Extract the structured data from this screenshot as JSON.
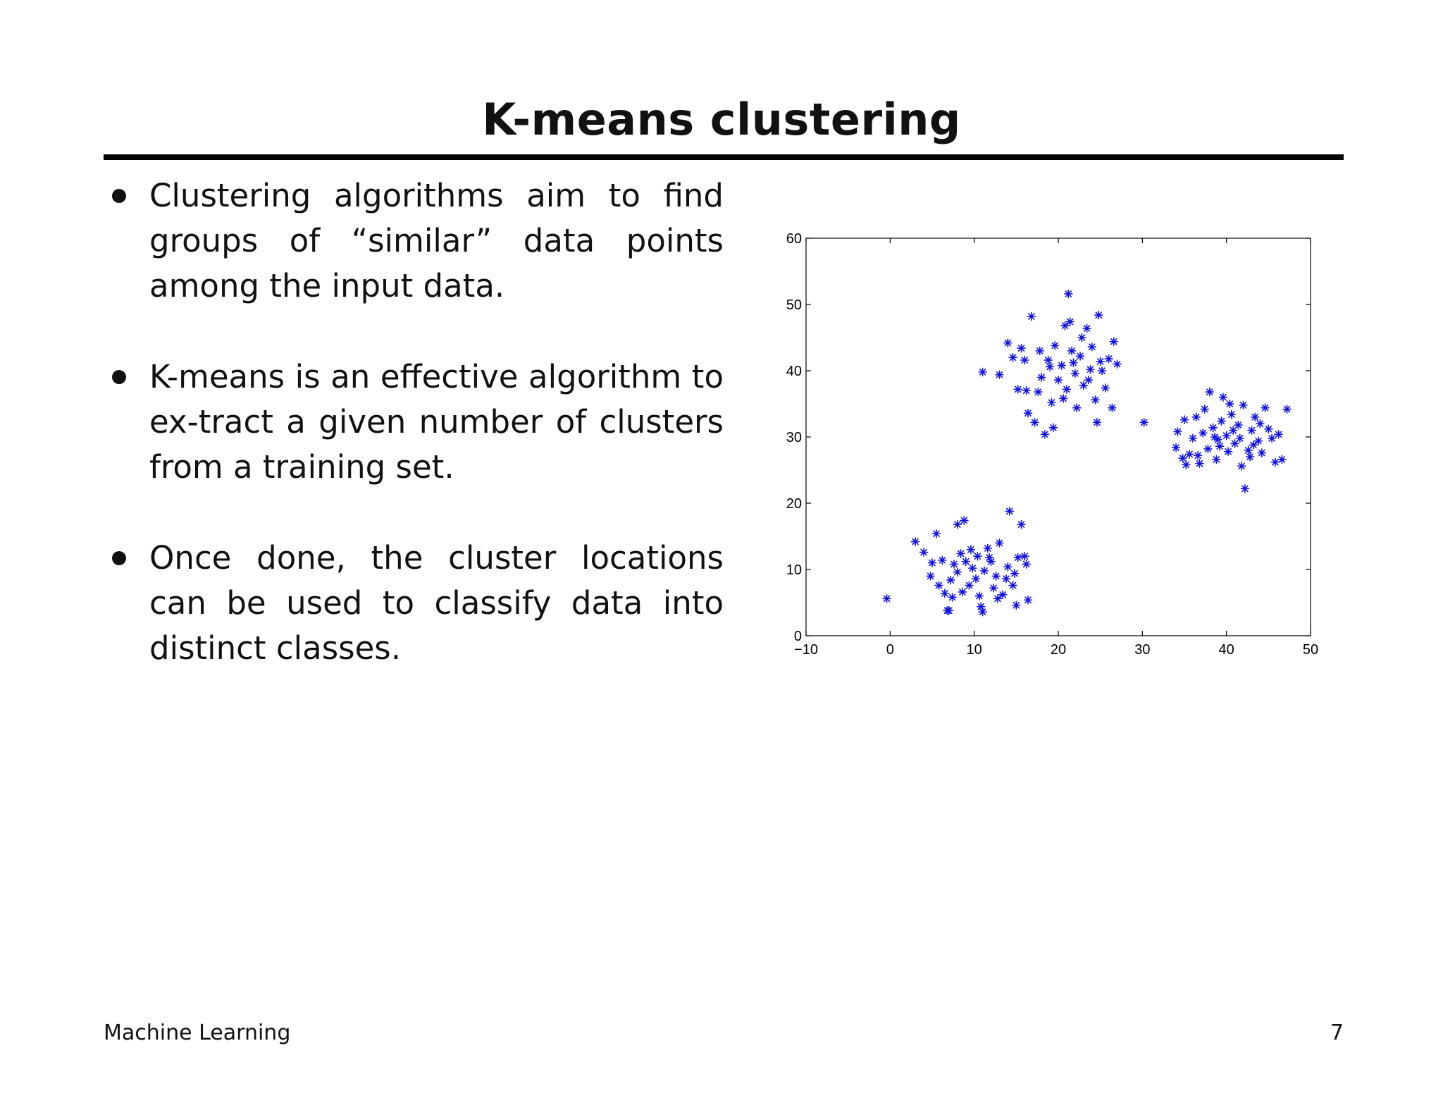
{
  "slide": {
    "title": "K-means clustering",
    "bullets": [
      "Clustering algorithms aim to find groups of “similar” data points among the input data.",
      "K-means is an effective algorithm to ex-tract a given number of clusters from a training set.",
      "Once done, the cluster locations can be used to classify data into distinct classes."
    ],
    "footer_left": "Machine Learning",
    "page_number": "7"
  },
  "chart_data": {
    "type": "scatter",
    "marker": "asterisk",
    "marker_color": "#1010e0",
    "xlim": [
      -10,
      50
    ],
    "ylim": [
      0,
      60
    ],
    "x_ticks": [
      -10,
      0,
      10,
      20,
      30,
      40,
      50
    ],
    "x_tick_labels": [
      "−10",
      "0",
      "10",
      "20",
      "30",
      "40",
      "50"
    ],
    "y_ticks": [
      0,
      10,
      20,
      30,
      40,
      50,
      60
    ],
    "y_tick_labels": [
      "0",
      "10",
      "20",
      "30",
      "40",
      "50",
      "60"
    ],
    "grid": false,
    "series": [
      {
        "points": [
          [
            -0.4,
            5.6
          ],
          [
            3.0,
            14.2
          ],
          [
            4.0,
            12.6
          ],
          [
            5.5,
            15.4
          ],
          [
            5.0,
            11.0
          ],
          [
            4.8,
            9.0
          ],
          [
            5.8,
            7.6
          ],
          [
            6.5,
            6.4
          ],
          [
            7.0,
            3.8
          ],
          [
            7.4,
            5.8
          ],
          [
            7.2,
            8.4
          ],
          [
            8.0,
            9.6
          ],
          [
            8.4,
            12.4
          ],
          [
            8.0,
            16.8
          ],
          [
            8.8,
            17.4
          ],
          [
            9.0,
            11.2
          ],
          [
            9.4,
            7.6
          ],
          [
            9.8,
            10.2
          ],
          [
            10.2,
            8.6
          ],
          [
            10.4,
            12.0
          ],
          [
            10.8,
            4.4
          ],
          [
            11.0,
            3.6
          ],
          [
            11.2,
            9.8
          ],
          [
            11.6,
            13.2
          ],
          [
            12.0,
            11.2
          ],
          [
            12.3,
            7.2
          ],
          [
            12.6,
            9.0
          ],
          [
            13.0,
            14.0
          ],
          [
            13.4,
            6.2
          ],
          [
            13.8,
            8.6
          ],
          [
            14.0,
            10.4
          ],
          [
            14.2,
            18.8
          ],
          [
            14.6,
            7.6
          ],
          [
            15.0,
            4.6
          ],
          [
            15.2,
            11.8
          ],
          [
            15.6,
            16.8
          ],
          [
            16.0,
            12.0
          ],
          [
            16.2,
            10.8
          ],
          [
            16.4,
            5.4
          ],
          [
            6.2,
            11.4
          ],
          [
            7.6,
            10.8
          ],
          [
            8.6,
            6.6
          ],
          [
            9.6,
            13.0
          ],
          [
            10.6,
            6.0
          ],
          [
            11.8,
            11.8
          ],
          [
            12.8,
            5.6
          ],
          [
            14.8,
            9.4
          ],
          [
            6.8,
            3.8
          ]
        ]
      },
      {
        "points": [
          [
            11.0,
            39.8
          ],
          [
            13.0,
            39.4
          ],
          [
            14.0,
            44.2
          ],
          [
            14.6,
            42.0
          ],
          [
            15.2,
            37.2
          ],
          [
            15.6,
            43.4
          ],
          [
            16.0,
            41.6
          ],
          [
            16.4,
            33.6
          ],
          [
            16.8,
            48.2
          ],
          [
            17.2,
            32.2
          ],
          [
            17.6,
            36.8
          ],
          [
            18.0,
            39.0
          ],
          [
            18.4,
            30.4
          ],
          [
            18.8,
            41.6
          ],
          [
            19.2,
            35.2
          ],
          [
            19.6,
            43.8
          ],
          [
            19.4,
            31.4
          ],
          [
            20.0,
            38.6
          ],
          [
            20.4,
            40.8
          ],
          [
            20.8,
            46.8
          ],
          [
            21.0,
            37.2
          ],
          [
            21.2,
            51.6
          ],
          [
            21.4,
            47.4
          ],
          [
            21.6,
            43.0
          ],
          [
            22.0,
            39.6
          ],
          [
            22.2,
            34.4
          ],
          [
            22.6,
            42.2
          ],
          [
            23.0,
            37.8
          ],
          [
            23.4,
            46.4
          ],
          [
            23.8,
            40.2
          ],
          [
            24.0,
            43.6
          ],
          [
            24.4,
            35.6
          ],
          [
            24.6,
            32.2
          ],
          [
            24.8,
            48.4
          ],
          [
            25.2,
            40.0
          ],
          [
            25.6,
            37.4
          ],
          [
            26.0,
            41.8
          ],
          [
            26.4,
            34.4
          ],
          [
            26.6,
            44.4
          ],
          [
            27.0,
            41.0
          ],
          [
            17.8,
            43.0
          ],
          [
            20.6,
            35.8
          ],
          [
            22.8,
            45.0
          ],
          [
            23.6,
            38.6
          ],
          [
            25.0,
            41.4
          ],
          [
            19.0,
            40.6
          ],
          [
            21.8,
            41.2
          ],
          [
            16.2,
            37.0
          ]
        ]
      },
      {
        "points": [
          [
            30.2,
            32.2
          ],
          [
            34.0,
            28.4
          ],
          [
            34.2,
            30.8
          ],
          [
            34.8,
            26.8
          ],
          [
            35.2,
            25.8
          ],
          [
            35.6,
            27.4
          ],
          [
            36.0,
            29.8
          ],
          [
            36.4,
            33.0
          ],
          [
            36.8,
            26.0
          ],
          [
            37.2,
            30.6
          ],
          [
            37.4,
            34.2
          ],
          [
            37.8,
            28.2
          ],
          [
            38.0,
            36.8
          ],
          [
            38.4,
            31.4
          ],
          [
            38.8,
            26.6
          ],
          [
            39.0,
            29.6
          ],
          [
            39.4,
            32.4
          ],
          [
            39.6,
            36.0
          ],
          [
            40.0,
            30.2
          ],
          [
            40.2,
            27.8
          ],
          [
            40.6,
            33.4
          ],
          [
            41.0,
            29.0
          ],
          [
            41.4,
            31.8
          ],
          [
            41.8,
            25.6
          ],
          [
            42.0,
            34.8
          ],
          [
            42.2,
            22.2
          ],
          [
            42.6,
            28.0
          ],
          [
            43.0,
            31.0
          ],
          [
            43.4,
            33.0
          ],
          [
            43.8,
            29.4
          ],
          [
            44.2,
            27.6
          ],
          [
            44.6,
            34.4
          ],
          [
            45.0,
            31.2
          ],
          [
            45.4,
            29.8
          ],
          [
            45.8,
            26.2
          ],
          [
            46.2,
            30.4
          ],
          [
            46.6,
            26.6
          ],
          [
            47.2,
            34.2
          ],
          [
            39.2,
            28.6
          ],
          [
            40.8,
            31.0
          ],
          [
            41.6,
            29.8
          ],
          [
            38.6,
            30.0
          ],
          [
            43.2,
            28.8
          ],
          [
            36.6,
            27.2
          ],
          [
            44.0,
            32.0
          ],
          [
            40.4,
            35.0
          ],
          [
            35.0,
            32.6
          ],
          [
            42.8,
            27.0
          ]
        ]
      }
    ]
  }
}
